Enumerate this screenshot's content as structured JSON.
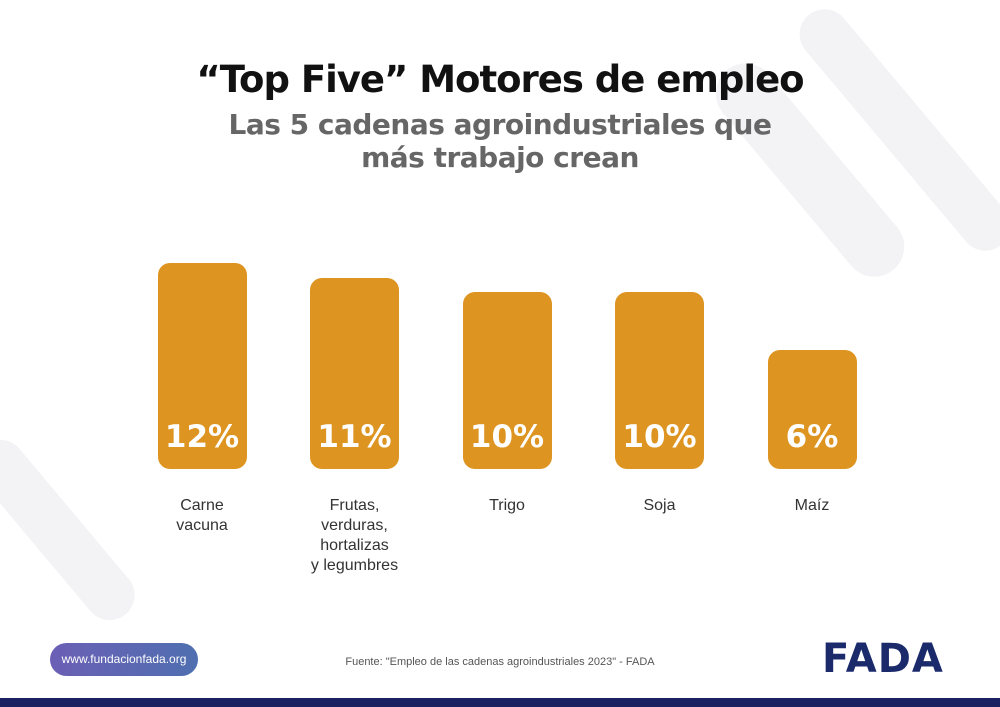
{
  "chart_data": {
    "type": "bar",
    "title": "“Top Five” Motores de empleo",
    "subtitle": "Las 5 cadenas agroindustriales que\nmás trabajo crean",
    "categories": [
      "Carne\nvacuna",
      "Frutas,\nverduras,\nhortalizas\ny legumbres",
      "Trigo",
      "Soja",
      "Maíz"
    ],
    "values": [
      12,
      11,
      10,
      10,
      6
    ],
    "value_labels": [
      "12%",
      "11%",
      "10%",
      "10%",
      "6%"
    ],
    "color": "#dd9420",
    "source": "Fuente: \"Empleo de las cadenas agroindustriales 2023\" - FADA",
    "website": "www.fundacionfada.org",
    "logo": "FADA"
  }
}
